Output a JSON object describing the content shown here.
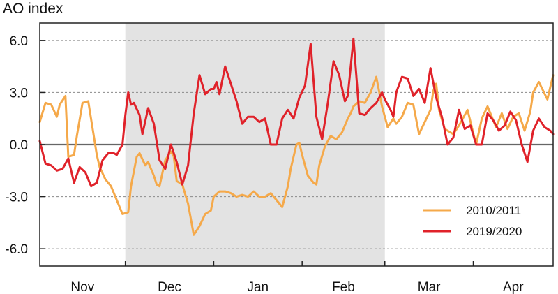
{
  "chart_data": {
    "type": "line",
    "title": "AO index",
    "xlabel": "",
    "ylabel": "",
    "categories": [
      "Nov",
      "Dec",
      "Jan",
      "Feb",
      "Mar",
      "Apr"
    ],
    "x_range_days": [
      0,
      180
    ],
    "month_boundaries": [
      30,
      61,
      92,
      121,
      152
    ],
    "ylim": [
      -7,
      7
    ],
    "yticks": [
      6.0,
      3.0,
      0.0,
      -3.0,
      -6.0
    ],
    "ytick_labels": [
      "6.0",
      "3.0",
      "0.0",
      "-3.0",
      "-6.0"
    ],
    "grid": "horizontal dashed",
    "shaded_period": [
      "Dec",
      "Feb"
    ],
    "shade_color": "#e3e3e3",
    "zero_line_color": "#666666",
    "legend_position": "lower-right",
    "series": [
      {
        "name": "2010/2011",
        "color": "#f5a94a",
        "x": [
          0,
          2,
          4,
          6,
          7,
          9,
          10,
          12,
          13,
          15,
          17,
          20,
          21,
          23,
          25,
          27,
          29,
          31,
          32,
          34,
          35,
          37,
          38,
          40,
          41,
          42,
          44,
          46,
          47,
          48,
          50,
          52,
          54,
          56,
          58,
          60,
          61,
          63,
          65,
          67,
          69,
          71,
          73,
          75,
          77,
          79,
          81,
          83,
          85,
          87,
          88,
          90,
          91,
          92,
          94,
          96,
          97,
          98,
          100,
          102,
          104,
          106,
          108,
          109,
          110,
          112,
          114,
          116,
          118,
          120,
          122,
          124,
          125,
          127,
          129,
          131,
          133,
          135,
          137,
          138,
          139,
          140,
          142,
          145,
          147,
          150,
          153,
          155,
          157,
          160,
          162,
          164,
          166,
          168,
          170,
          172,
          173,
          175,
          178,
          180
        ],
        "values": [
          1.3,
          2.4,
          2.3,
          1.6,
          2.3,
          2.8,
          -0.7,
          -0.6,
          0.5,
          2.4,
          2.5,
          -0.6,
          -1.3,
          -2.0,
          -2.4,
          -3.2,
          -4.0,
          -3.9,
          -2.4,
          -0.7,
          -0.5,
          -1.2,
          -1.0,
          -1.8,
          -2.3,
          -2.4,
          -0.9,
          -0.4,
          -0.7,
          -2.1,
          -2.3,
          -3.4,
          -5.2,
          -4.7,
          -4.0,
          -3.8,
          -3.0,
          -2.7,
          -2.7,
          -2.8,
          -3.0,
          -2.9,
          -3.0,
          -2.7,
          -3.0,
          -3.0,
          -2.8,
          -3.2,
          -3.6,
          -2.4,
          -1.4,
          0.0,
          0.1,
          -0.6,
          -1.8,
          -2.2,
          -2.3,
          -1.2,
          -0.1,
          0.5,
          0.3,
          0.7,
          1.5,
          1.8,
          2.2,
          2.5,
          2.4,
          3.0,
          3.9,
          2.2,
          1.0,
          1.5,
          1.2,
          1.6,
          2.4,
          2.3,
          0.6,
          1.3,
          2.0,
          3.1,
          3.5,
          2.0,
          0.9,
          0.6,
          1.1,
          2.0,
          0.0,
          1.5,
          2.2,
          1.0,
          1.8,
          0.9,
          1.6,
          1.8,
          0.8,
          1.9,
          3.0,
          3.6,
          2.6,
          4.0
        ]
      },
      {
        "name": "2019/2020",
        "color": "#e0222a",
        "x": [
          0,
          2,
          4,
          6,
          8,
          10,
          12,
          14,
          16,
          18,
          20,
          22,
          24,
          26,
          27,
          29,
          30,
          31,
          32,
          33,
          35,
          36,
          38,
          40,
          42,
          44,
          46,
          48,
          50,
          52,
          54,
          56,
          58,
          60,
          61,
          62,
          63,
          65,
          67,
          69,
          71,
          73,
          75,
          77,
          79,
          81,
          83,
          85,
          87,
          89,
          91,
          93,
          95,
          97,
          99,
          101,
          103,
          105,
          107,
          108,
          110,
          112,
          114,
          116,
          118,
          120,
          121,
          123,
          124,
          125,
          127,
          129,
          131,
          133,
          135,
          137,
          139,
          141,
          143,
          145,
          147,
          149,
          151,
          153,
          155,
          157,
          159,
          161,
          163,
          165,
          167,
          169,
          171,
          173,
          175,
          177,
          179,
          180
        ],
        "values": [
          0.2,
          -1.1,
          -1.2,
          -1.5,
          -1.4,
          -0.8,
          -2.2,
          -1.3,
          -1.6,
          -2.4,
          -2.2,
          -0.9,
          -0.5,
          -0.5,
          -0.6,
          0.0,
          1.7,
          3.0,
          2.3,
          2.4,
          1.7,
          0.6,
          2.1,
          1.2,
          -0.9,
          -1.4,
          0.0,
          -1.0,
          -2.3,
          -1.2,
          1.8,
          4.0,
          2.9,
          3.2,
          3.2,
          3.6,
          2.9,
          4.5,
          3.5,
          2.5,
          1.2,
          1.6,
          1.6,
          1.3,
          1.5,
          0.0,
          0.0,
          1.5,
          2.0,
          1.5,
          2.7,
          3.4,
          5.8,
          1.6,
          0.3,
          2.4,
          4.8,
          4.0,
          2.5,
          2.8,
          6.1,
          1.8,
          1.7,
          2.1,
          2.4,
          3.0,
          2.6,
          2.0,
          1.6,
          3.0,
          3.9,
          3.8,
          2.8,
          3.2,
          2.4,
          4.4,
          2.7,
          1.6,
          0.0,
          0.4,
          2.0,
          0.9,
          1.1,
          0.0,
          0.0,
          1.8,
          1.4,
          0.8,
          1.1,
          1.9,
          1.4,
          0.0,
          -1.0,
          0.8,
          1.5,
          1.0,
          0.8,
          0.6
        ]
      }
    ]
  }
}
